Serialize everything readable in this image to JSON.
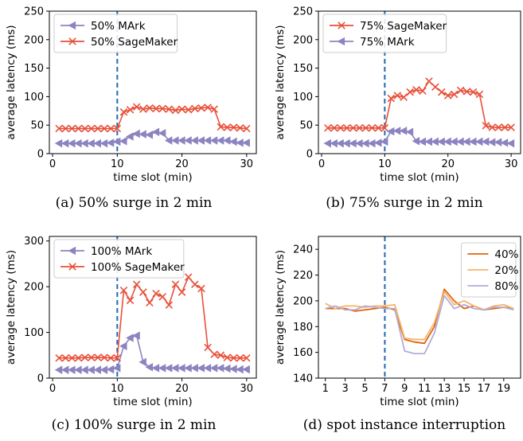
{
  "colors": {
    "mark": "#8c84c0",
    "sagemaker": "#e8503a",
    "vline": "#1f6bb4",
    "s40": "#e0620a",
    "s20": "#f5b46a",
    "s80": "#b3acd6"
  },
  "chart_data": [
    {
      "type": "line",
      "caption": "(a) 50% surge in 2 min",
      "xlabel": "time slot (min)",
      "ylabel": "average latency (ms)",
      "xlim": [
        -0.5,
        31.5
      ],
      "ylim": [
        0,
        250
      ],
      "xticks": [
        0,
        10,
        20,
        30
      ],
      "yticks": [
        0,
        50,
        100,
        150,
        200,
        250
      ],
      "vline": 10,
      "legend_position": "top-left",
      "series": [
        {
          "name": "50% MArk",
          "marker": "triangle-left",
          "color_key": "mark",
          "x": [
            1,
            2,
            3,
            4,
            5,
            6,
            7,
            8,
            9,
            10,
            11,
            12,
            13,
            14,
            15,
            16,
            17,
            18,
            19,
            20,
            21,
            22,
            23,
            24,
            25,
            26,
            27,
            28,
            29,
            30
          ],
          "values": [
            18,
            18,
            18,
            18,
            18,
            18,
            18,
            18,
            19,
            21,
            22,
            30,
            35,
            34,
            33,
            38,
            36,
            23,
            23,
            23,
            23,
            23,
            23,
            23,
            23,
            23,
            23,
            21,
            19,
            19
          ]
        },
        {
          "name": "50% SageMaker",
          "marker": "x",
          "color_key": "sagemaker",
          "x": [
            1,
            2,
            3,
            4,
            5,
            6,
            7,
            8,
            9,
            10,
            11,
            12,
            13,
            14,
            15,
            16,
            17,
            18,
            19,
            20,
            21,
            22,
            23,
            24,
            25,
            26,
            27,
            28,
            29,
            30
          ],
          "values": [
            44,
            44,
            44,
            44,
            44,
            44,
            44,
            44,
            44,
            44,
            73,
            77,
            82,
            78,
            80,
            79,
            79,
            78,
            76,
            78,
            77,
            79,
            80,
            81,
            78,
            47,
            46,
            46,
            45,
            44
          ]
        }
      ]
    },
    {
      "type": "line",
      "caption": "(b) 75% surge in 2 min",
      "xlabel": "time slot (min)",
      "ylabel": "average latency (ms)",
      "xlim": [
        -0.5,
        31.5
      ],
      "ylim": [
        0,
        250
      ],
      "xticks": [
        0,
        10,
        20,
        30
      ],
      "yticks": [
        0,
        50,
        100,
        150,
        200,
        250
      ],
      "vline": 10,
      "legend_position": "top-left",
      "series": [
        {
          "name": "75% SageMaker",
          "marker": "x",
          "color_key": "sagemaker",
          "x": [
            1,
            2,
            3,
            4,
            5,
            6,
            7,
            8,
            9,
            10,
            11,
            12,
            13,
            14,
            15,
            16,
            17,
            18,
            19,
            20,
            21,
            22,
            23,
            24,
            25,
            26,
            27,
            28,
            29,
            30
          ],
          "values": [
            45,
            45,
            45,
            45,
            45,
            45,
            45,
            45,
            45,
            45,
            97,
            102,
            99,
            108,
            112,
            110,
            127,
            117,
            108,
            102,
            104,
            111,
            109,
            108,
            104,
            49,
            46,
            46,
            46,
            46
          ]
        },
        {
          "name": "75% MArk",
          "marker": "triangle-left",
          "color_key": "mark",
          "x": [
            1,
            2,
            3,
            4,
            5,
            6,
            7,
            8,
            9,
            10,
            11,
            12,
            13,
            14,
            15,
            16,
            17,
            18,
            19,
            20,
            21,
            22,
            23,
            24,
            25,
            26,
            27,
            28,
            29,
            30
          ],
          "values": [
            18,
            18,
            18,
            18,
            18,
            18,
            18,
            18,
            19,
            21,
            39,
            40,
            40,
            38,
            22,
            21,
            21,
            21,
            21,
            21,
            21,
            21,
            21,
            21,
            21,
            21,
            20,
            20,
            19,
            18
          ]
        }
      ]
    },
    {
      "type": "line",
      "caption": "(c) 100% surge in 2 min",
      "xlabel": "time slot (min)",
      "ylabel": "average latency (ms)",
      "xlim": [
        -0.5,
        31.5
      ],
      "ylim": [
        0,
        310
      ],
      "xticks": [
        0,
        10,
        20,
        30
      ],
      "yticks": [
        0,
        100,
        200,
        300
      ],
      "vline": 10,
      "legend_position": "top-left",
      "series": [
        {
          "name": "100% MArk",
          "marker": "triangle-left",
          "color_key": "mark",
          "x": [
            1,
            2,
            3,
            4,
            5,
            6,
            7,
            8,
            9,
            10,
            11,
            12,
            13,
            14,
            15,
            16,
            17,
            18,
            19,
            20,
            21,
            22,
            23,
            24,
            25,
            26,
            27,
            28,
            29,
            30
          ],
          "values": [
            18,
            18,
            18,
            18,
            18,
            18,
            18,
            18,
            19,
            22,
            70,
            88,
            93,
            35,
            24,
            22,
            22,
            22,
            22,
            22,
            22,
            22,
            22,
            22,
            22,
            22,
            21,
            20,
            19,
            19
          ]
        },
        {
          "name": "100% SageMaker",
          "marker": "x",
          "color_key": "sagemaker",
          "x": [
            1,
            2,
            3,
            4,
            5,
            6,
            7,
            8,
            9,
            10,
            11,
            12,
            13,
            14,
            15,
            16,
            17,
            18,
            19,
            20,
            21,
            22,
            23,
            24,
            25,
            26,
            27,
            28,
            29,
            30
          ],
          "values": [
            44,
            44,
            44,
            44,
            45,
            45,
            45,
            45,
            44,
            44,
            192,
            170,
            205,
            188,
            165,
            185,
            178,
            160,
            205,
            188,
            221,
            205,
            196,
            67,
            52,
            50,
            45,
            44,
            44,
            44
          ]
        }
      ]
    },
    {
      "type": "line",
      "caption": "(d) spot instance interruption",
      "xlabel": "time slot (min)",
      "ylabel": "average latency (ms)",
      "xlim": [
        0.3,
        20.7
      ],
      "ylim": [
        140,
        250
      ],
      "xticks": [
        1,
        3,
        5,
        7,
        9,
        11,
        13,
        15,
        17,
        19
      ],
      "yticks": [
        140,
        160,
        180,
        200,
        220,
        240
      ],
      "vline": 7,
      "legend_position": "top-right",
      "series": [
        {
          "name": "40%",
          "marker": "none",
          "color_key": "s40",
          "x": [
            1,
            2,
            3,
            4,
            5,
            6,
            7,
            8,
            9,
            10,
            11,
            12,
            13,
            14,
            15,
            16,
            17,
            18,
            19,
            20
          ],
          "values": [
            194,
            194,
            194,
            192,
            193,
            194,
            195,
            193,
            170,
            168,
            167,
            180,
            209,
            200,
            194,
            196,
            193,
            194,
            195,
            194
          ]
        },
        {
          "name": "20%",
          "marker": "none",
          "color_key": "s20",
          "x": [
            1,
            2,
            3,
            4,
            5,
            6,
            7,
            8,
            9,
            10,
            11,
            12,
            13,
            14,
            15,
            16,
            17,
            18,
            19,
            20
          ],
          "values": [
            198,
            194,
            196,
            196,
            195,
            196,
            196,
            197,
            171,
            170,
            170,
            183,
            207,
            197,
            200,
            196,
            193,
            196,
            197,
            194
          ]
        },
        {
          "name": "80%",
          "marker": "none",
          "color_key": "s80",
          "x": [
            1,
            2,
            3,
            4,
            5,
            6,
            7,
            8,
            9,
            10,
            11,
            12,
            13,
            14,
            15,
            16,
            17,
            18,
            19,
            20
          ],
          "values": [
            194,
            196,
            193,
            193,
            196,
            195,
            194,
            194,
            161,
            159,
            159,
            175,
            204,
            194,
            197,
            194,
            193,
            195,
            195,
            193
          ]
        }
      ]
    }
  ]
}
